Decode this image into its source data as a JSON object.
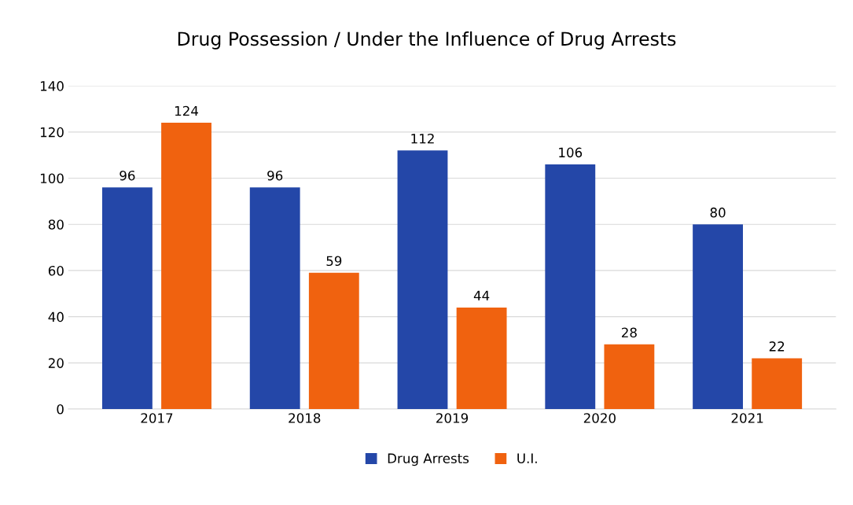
{
  "chart_data": {
    "type": "bar",
    "title": "Drug Possession / Under the Influence of Drug Arrests",
    "categories": [
      "2017",
      "2018",
      "2019",
      "2020",
      "2021"
    ],
    "series": [
      {
        "name": "Drug Arrests",
        "color": "#2447a8",
        "values": [
          96,
          96,
          112,
          106,
          80
        ]
      },
      {
        "name": "U.I.",
        "color": "#f0620f",
        "values": [
          124,
          59,
          44,
          28,
          22
        ]
      }
    ],
    "ylim": [
      0,
      140
    ],
    "yticks": [
      0,
      20,
      40,
      60,
      80,
      100,
      120,
      140
    ],
    "grid": "y",
    "legend": "bottom",
    "data_labels": true
  }
}
